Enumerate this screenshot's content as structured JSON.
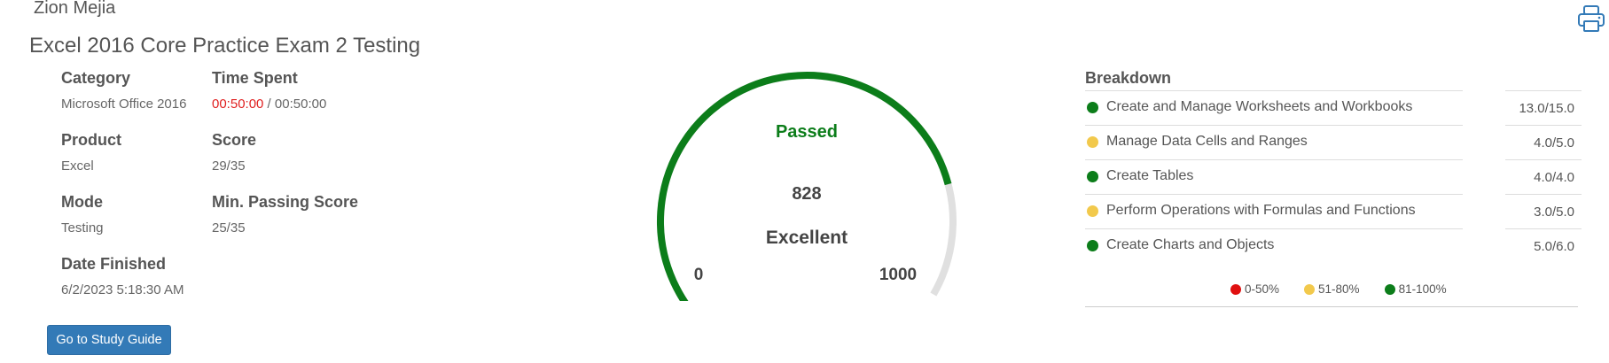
{
  "user": {
    "name": "Zion Mejia"
  },
  "exam": {
    "title": "Excel 2016 Core Practice Exam 2 Testing"
  },
  "info": {
    "category": {
      "label": "Category",
      "value": "Microsoft Office 2016"
    },
    "time_spent": {
      "label": "Time Spent",
      "elapsed": "00:50:00",
      "separator": " / ",
      "total": "00:50:00"
    },
    "product": {
      "label": "Product",
      "value": "Excel"
    },
    "score": {
      "label": "Score",
      "value": "29/35"
    },
    "mode": {
      "label": "Mode",
      "value": "Testing"
    },
    "min_passing": {
      "label": "Min. Passing Score",
      "value": "25/35"
    },
    "date_finished": {
      "label": "Date Finished",
      "value": "6/2/2023 5:18:30 AM"
    }
  },
  "study_button": {
    "label": "Go to Study Guide"
  },
  "gauge": {
    "status": "Passed",
    "score": 828,
    "score_text": "828",
    "rating": "Excellent",
    "min": 0,
    "max": 1000,
    "min_label": "0",
    "max_label": "1000",
    "fill_color": "#0c7d1a",
    "track_color": "#e0e0e0"
  },
  "breakdown": {
    "title": "Breakdown",
    "rows": [
      {
        "name": "Create and Manage Worksheets and Workbooks",
        "score": "13.0/15.0",
        "color": "#0c7d1a"
      },
      {
        "name": "Manage Data Cells and Ranges",
        "score": "4.0/5.0",
        "color": "#f2c94c"
      },
      {
        "name": "Create Tables",
        "score": "4.0/4.0",
        "color": "#0c7d1a"
      },
      {
        "name": "Perform Operations with Formulas and Functions",
        "score": "3.0/5.0",
        "color": "#f2c94c"
      },
      {
        "name": "Create Charts and Objects",
        "score": "5.0/6.0",
        "color": "#0c7d1a"
      }
    ],
    "legend": [
      {
        "label": "0-50%",
        "color": "#e01010"
      },
      {
        "label": "51-80%",
        "color": "#f2c94c"
      },
      {
        "label": "81-100%",
        "color": "#0c7d1a"
      }
    ]
  }
}
